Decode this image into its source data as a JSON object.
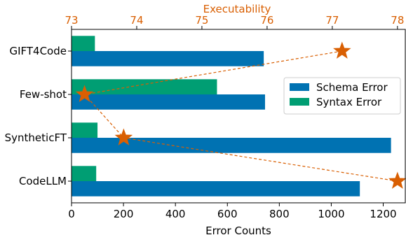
{
  "chart_data": {
    "type": "bar",
    "orientation": "horizontal",
    "categories": [
      "GIFT4Code",
      "Few-shot",
      "SyntheticFT",
      "CodeLLM"
    ],
    "series": [
      {
        "name": "Schema Error",
        "values": [
          740,
          745,
          1230,
          1110
        ],
        "color": "#0072b2"
      },
      {
        "name": "Syntax Error",
        "values": [
          90,
          560,
          100,
          95
        ],
        "color": "#009e73"
      }
    ],
    "xlabel": "Error Counts",
    "xlim": [
      0,
      1285
    ],
    "xticks": [
      "0",
      "200",
      "400",
      "600",
      "800",
      "1000",
      "1200"
    ],
    "xtick_values": [
      0,
      200,
      400,
      600,
      800,
      1000,
      1200
    ],
    "secondary_axis": {
      "label": "Executability",
      "lim": [
        73,
        78.12
      ],
      "ticks": [
        "73",
        "74",
        "75",
        "76",
        "77",
        "78"
      ],
      "tick_values": [
        73,
        74,
        75,
        76,
        77,
        78
      ],
      "color": "#d95f02",
      "values": [
        77.15,
        73.2,
        73.8,
        78.0
      ],
      "marker": "star",
      "line_style": "dashed"
    },
    "legend": {
      "placement": "center-right"
    }
  }
}
